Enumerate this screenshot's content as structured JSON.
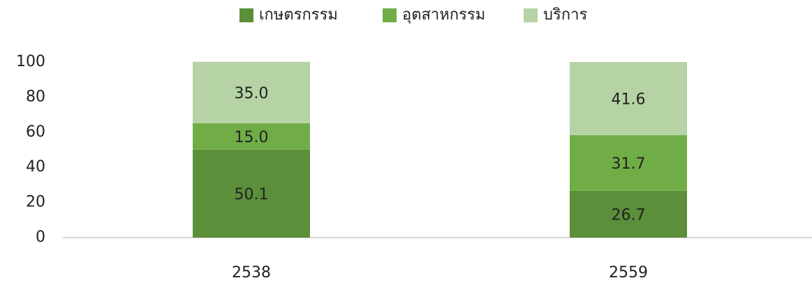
{
  "chart_data": {
    "type": "stacked_bar",
    "categories": [
      "2538",
      "2559"
    ],
    "series": [
      {
        "name": "เกษตรกรรม",
        "color": "#5b8f3a",
        "values": [
          50.1,
          26.7
        ],
        "value_labels": [
          "50.1",
          "26.7"
        ]
      },
      {
        "name": "อุตสาหกรรม",
        "color": "#70ad47",
        "values": [
          15.0,
          31.7
        ],
        "value_labels": [
          "15.0",
          "31.7"
        ]
      },
      {
        "name": "บริการ",
        "color": "#b5d3a4",
        "values": [
          35.0,
          41.6
        ],
        "value_labels": [
          "35.0",
          "41.6"
        ]
      }
    ],
    "ylim": [
      0,
      100
    ],
    "yticks": [
      0,
      20,
      40,
      60,
      80,
      100
    ],
    "grid": false,
    "legend": "top"
  }
}
